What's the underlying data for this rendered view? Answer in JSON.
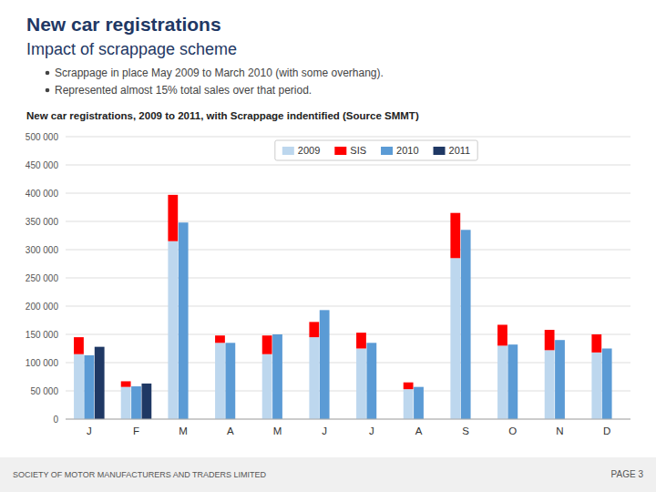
{
  "chart_data": {
    "type": "bar",
    "title": "New car registrations",
    "subtitle": "Impact of scrappage scheme",
    "annotations": [
      "Scrappage in place May 2009 to March 2010 (with some overhang).",
      "Represented almost 15% total sales over that period.",
      "New car registrations, 2009 to 2011, with Scrappage indentified (Source SMMT)",
      "SOCIETY OF MOTOR MANUFACTURERS AND TRADERS LIMITED",
      "PAGE 3"
    ],
    "categories": [
      "J",
      "F",
      "M",
      "A",
      "M",
      "J",
      "J",
      "A",
      "S",
      "O",
      "N",
      "D"
    ],
    "series": [
      {
        "name": "2009",
        "color": "#bdd7ee",
        "values": [
          115000,
          57000,
          315000,
          135000,
          115000,
          145000,
          125000,
          53000,
          285000,
          130000,
          122000,
          118000
        ]
      },
      {
        "name": "SIS",
        "color": "#ff0000",
        "stacked": true,
        "values": [
          30000,
          10000,
          82000,
          13000,
          33000,
          27000,
          28000,
          12000,
          80000,
          37000,
          36000,
          32000
        ]
      },
      {
        "name": "2010",
        "color": "#5b9bd5",
        "values": [
          113000,
          58000,
          348000,
          135000,
          150000,
          193000,
          135000,
          57000,
          335000,
          132000,
          140000,
          125000
        ]
      },
      {
        "name": "2011",
        "color": "#1f3864",
        "values": [
          128000,
          63000,
          null,
          null,
          null,
          null,
          null,
          null,
          null,
          null,
          null,
          null
        ]
      }
    ],
    "ylim": [
      0,
      500000
    ],
    "yticks": [
      0,
      {
        "value": 50000,
        "label": "50 000"
      },
      {
        "value": 100000,
        "label": "100 000"
      },
      {
        "value": 150000,
        "label": "150 000"
      },
      {
        "value": 200000,
        "label": "200 000"
      },
      {
        "value": 250000,
        "label": "250 000"
      },
      {
        "value": 300000,
        "label": "300 000"
      },
      {
        "value": 350000,
        "label": "350 000"
      },
      {
        "value": 400000,
        "label": "400 000"
      },
      {
        "value": 450000,
        "label": "450 000"
      },
      {
        "value": 500000,
        "label": "500 000"
      }
    ],
    "grid": true,
    "legend": "top"
  }
}
